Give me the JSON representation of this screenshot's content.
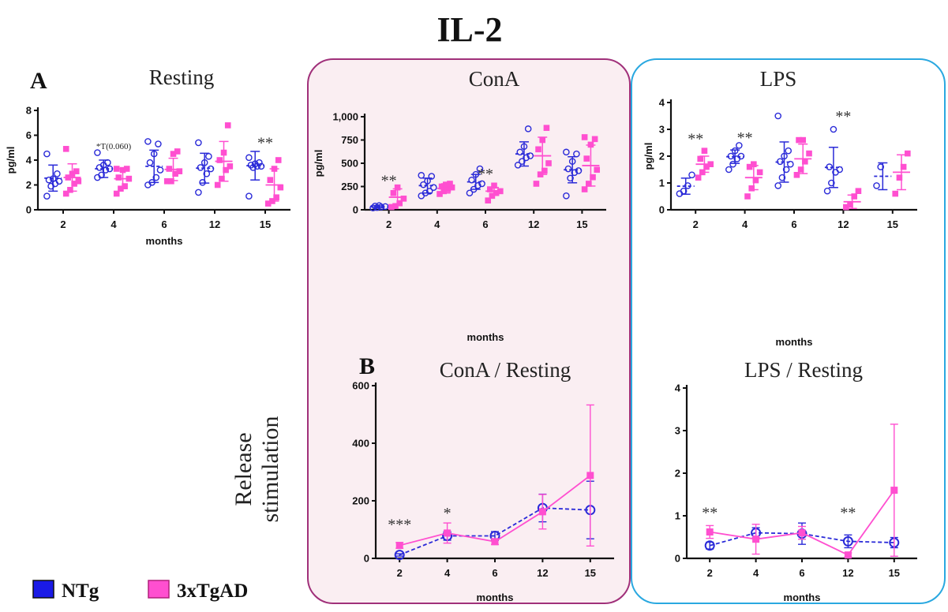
{
  "figure": {
    "title": "IL-2",
    "panel_letters": [
      "A",
      "B"
    ],
    "release_label": [
      "Release",
      "stimulation"
    ]
  },
  "legend": [
    {
      "label": "NTg",
      "color": "#1a1ae6"
    },
    {
      "label": "3xTgAD",
      "color": "#ff4fd0"
    }
  ],
  "colors": {
    "ntg": "#2a2ad8",
    "tg": "#ff4fd0",
    "cona_box": "#a0307a",
    "lps_box": "#2aa8e0",
    "box_fill": "#faeef2"
  },
  "chart_data": [
    {
      "id": "resting",
      "type": "scatter",
      "title": "Resting",
      "ylabel": "pg/ml",
      "xlabel": "months",
      "categories": [
        "2",
        "4",
        "6",
        "12",
        "15"
      ],
      "ylim": [
        0,
        8
      ],
      "yticks": [
        "0",
        "2",
        "4",
        "6",
        "8"
      ],
      "series": [
        {
          "name": "NTg",
          "points": [
            [
              1.1,
              1.9,
              2.1,
              2.3,
              2.4,
              2.5,
              2.9,
              4.5
            ],
            [
              2.6,
              2.8,
              3.2,
              3.3,
              3.4,
              3.6,
              3.8,
              4.6
            ],
            [
              2.0,
              2.2,
              2.6,
              3.2,
              3.8,
              4.5,
              5.3,
              5.5
            ],
            [
              1.4,
              2.2,
              2.9,
              3.3,
              3.4,
              3.8,
              4.3,
              5.4
            ],
            [
              1.1,
              3.4,
              3.5,
              3.5,
              3.6,
              3.7,
              3.8,
              4.2
            ]
          ],
          "mean": [
            2.55,
            3.3,
            3.5,
            3.35,
            3.55
          ],
          "sd": [
            1.05,
            0.7,
            1.3,
            1.2,
            1.15
          ]
        },
        {
          "name": "3xTgAD",
          "points": [
            [
              1.3,
              1.6,
              2.1,
              2.3,
              2.6,
              2.9,
              3.1,
              4.9
            ],
            [
              1.3,
              1.7,
              1.9,
              2.5,
              2.6,
              3.2,
              3.3,
              3.3
            ],
            [
              2.3,
              2.3,
              2.9,
              3.1,
              3.3,
              4.5,
              4.7
            ],
            [
              2.0,
              2.5,
              3.2,
              3.5,
              4.0,
              4.6,
              6.8
            ],
            [
              0.5,
              0.7,
              1.0,
              1.8,
              2.4,
              3.3,
              4.0
            ]
          ],
          "mean": [
            2.6,
            2.5,
            3.25,
            3.9,
            2.0
          ],
          "sd": [
            1.1,
            0.8,
            0.9,
            1.6,
            1.3
          ]
        }
      ],
      "annotations": [
        {
          "category": "4",
          "text": "*T(0.060)"
        },
        {
          "category": "15",
          "text": "**"
        }
      ]
    },
    {
      "id": "cona",
      "type": "scatter",
      "title": "ConA",
      "ylabel": "pg/ml",
      "xlabel": "months",
      "categories": [
        "2",
        "4",
        "6",
        "12",
        "15"
      ],
      "ylim": [
        0,
        1000
      ],
      "yticks": [
        "0",
        "250",
        "500",
        "750",
        "1,000"
      ],
      "series": [
        {
          "name": "NTg",
          "points": [
            [
              20,
              25,
              30,
              35,
              40,
              45
            ],
            [
              150,
              180,
              200,
              240,
              270,
              310,
              360,
              370
            ],
            [
              180,
              220,
              260,
              280,
              320,
              380,
              440
            ],
            [
              480,
              520,
              560,
              580,
              620,
              680,
              870
            ],
            [
              150,
              340,
              400,
              420,
              440,
              520,
              600,
              620
            ]
          ],
          "mean": [
            32,
            260,
            300,
            600,
            430
          ],
          "sd": [
            10,
            80,
            80,
            130,
            140
          ]
        },
        {
          "name": "3xTgAD",
          "points": [
            [
              30,
              40,
              70,
              120,
              180,
              240
            ],
            [
              170,
              200,
              220,
              240,
              250,
              270,
              280
            ],
            [
              100,
              150,
              180,
              200,
              220,
              260
            ],
            [
              280,
              380,
              420,
              500,
              650,
              750,
              880
            ],
            [
              220,
              280,
              350,
              430,
              550,
              700,
              760,
              780
            ]
          ],
          "mean": [
            135,
            230,
            200,
            580,
            475
          ],
          "sd": [
            90,
            50,
            40,
            200,
            220
          ]
        }
      ],
      "annotations": [
        {
          "category": "2",
          "text": "**"
        },
        {
          "category": "6",
          "text": "**"
        }
      ]
    },
    {
      "id": "lps",
      "type": "scatter",
      "title": "LPS",
      "ylabel": "pg/ml",
      "xlabel": "months",
      "categories": [
        "2",
        "4",
        "6",
        "12",
        "15"
      ],
      "ylim": [
        0,
        4
      ],
      "yticks": [
        "0",
        "1",
        "2",
        "3",
        "4"
      ],
      "series": [
        {
          "name": "NTg",
          "points": [
            [
              0.6,
              0.7,
              0.9,
              1.3
            ],
            [
              1.5,
              1.7,
              1.9,
              2.0,
              2.0,
              2.2,
              2.4
            ],
            [
              0.9,
              1.2,
              1.5,
              1.7,
              1.8,
              2.0,
              2.2,
              3.5
            ],
            [
              0.7,
              1.0,
              1.4,
              1.5,
              1.6,
              3.0
            ],
            [
              0.9,
              1.6
            ]
          ],
          "mean": [
            0.88,
            1.98,
            1.78,
            1.58,
            1.25
          ],
          "sd": [
            0.3,
            0.25,
            0.75,
            0.75,
            0.5
          ]
        },
        {
          "name": "3xTgAD",
          "points": [
            [
              1.2,
              1.4,
              1.6,
              1.7,
              1.9,
              2.2
            ],
            [
              0.5,
              0.8,
              1.1,
              1.4,
              1.6,
              1.7
            ],
            [
              1.3,
              1.5,
              1.8,
              2.1,
              2.6,
              2.6
            ],
            [
              0.1,
              0.2,
              0.5,
              0.7
            ],
            [
              0.6,
              1.2,
              1.6,
              2.1
            ]
          ],
          "mean": [
            1.7,
            1.2,
            1.9,
            0.3,
            1.4
          ],
          "sd": [
            0.3,
            0.45,
            0.55,
            0.25,
            0.65
          ]
        }
      ],
      "annotations": [
        {
          "category": "2",
          "text": "**"
        },
        {
          "category": "4",
          "text": "**"
        },
        {
          "category": "12",
          "text": "**"
        }
      ]
    },
    {
      "id": "cona_ratio",
      "type": "line",
      "title": "ConA / Resting",
      "xlabel": "months",
      "categories": [
        "2",
        "4",
        "6",
        "12",
        "15"
      ],
      "ylim": [
        0,
        600
      ],
      "yticks": [
        "0",
        "200",
        "400",
        "600"
      ],
      "series": [
        {
          "name": "NTg",
          "values": [
            12,
            78,
            78,
            175,
            168
          ],
          "err": [
            4,
            15,
            15,
            48,
            100
          ]
        },
        {
          "name": "3xTgAD",
          "values": [
            45,
            88,
            58,
            162,
            288
          ],
          "err": [
            10,
            35,
            10,
            60,
            245
          ]
        }
      ],
      "annotations": [
        {
          "category": "2",
          "text": "***"
        },
        {
          "category": "4",
          "text": "*"
        }
      ]
    },
    {
      "id": "lps_ratio",
      "type": "line",
      "title": "LPS / Resting",
      "xlabel": "months",
      "categories": [
        "2",
        "4",
        "6",
        "12",
        "15"
      ],
      "ylim": [
        0,
        4
      ],
      "yticks": [
        "0",
        "1",
        "2",
        "3",
        "4"
      ],
      "series": [
        {
          "name": "NTg",
          "values": [
            0.3,
            0.6,
            0.58,
            0.4,
            0.37
          ],
          "err": [
            0.08,
            0.12,
            0.25,
            0.15,
            0.12
          ]
        },
        {
          "name": "3xTgAD",
          "values": [
            0.62,
            0.45,
            0.6,
            0.08,
            1.6
          ],
          "err": [
            0.15,
            0.35,
            0.15,
            0.05,
            1.55
          ]
        }
      ],
      "annotations": [
        {
          "category": "2",
          "text": "**"
        },
        {
          "category": "12",
          "text": "**"
        }
      ]
    }
  ]
}
